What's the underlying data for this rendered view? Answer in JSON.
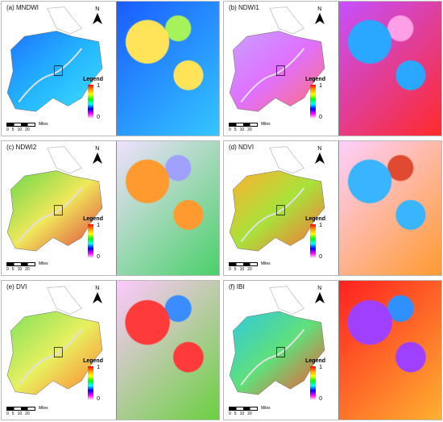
{
  "panels": [
    {
      "id": "a",
      "title": "(a) MNDWI",
      "north": "N",
      "legend": "Legend",
      "hi": "1",
      "lo": "0",
      "scale_ticks": [
        "0",
        "5",
        "10",
        "20"
      ],
      "scale_unit": "Miles",
      "map_colors": [
        "#1e73ff",
        "#23b4ff",
        "#3fe0ff"
      ],
      "zoom_colors": [
        "#1a5cff",
        "#34c6ff",
        "#ffe45a",
        "#a6f25a"
      ]
    },
    {
      "id": "b",
      "title": "(b) NDWI1",
      "north": "N",
      "legend": "Legend",
      "hi": "1",
      "lo": "0",
      "scale_ticks": [
        "0",
        "5",
        "10",
        "20"
      ],
      "scale_unit": "Miles",
      "map_colors": [
        "#c8a0ff",
        "#e070ff",
        "#ff7070"
      ],
      "zoom_colors": [
        "#c550ff",
        "#ff2a2a",
        "#2aa8ff",
        "#ff9fe5"
      ]
    },
    {
      "id": "c",
      "title": "(c) NDWI2",
      "north": "N",
      "legend": "Legend",
      "hi": "1",
      "lo": "0",
      "scale_ticks": [
        "0",
        "5",
        "10",
        "20"
      ],
      "scale_unit": "Miles",
      "map_colors": [
        "#69d64a",
        "#f0e85a",
        "#e04040"
      ],
      "zoom_colors": [
        "#f0e0ff",
        "#4ad06a",
        "#ff9a30",
        "#a0a0ff"
      ]
    },
    {
      "id": "d",
      "title": "(d) NDVI",
      "north": "N",
      "legend": "Legend",
      "hi": "1",
      "lo": "0",
      "scale_ticks": [
        "0",
        "5",
        "10",
        "20"
      ],
      "scale_unit": "Miles",
      "map_colors": [
        "#ffb030",
        "#a8e23a",
        "#ff6a3a"
      ],
      "zoom_colors": [
        "#ffd0ff",
        "#ff9a30",
        "#39b4ff",
        "#e04a30"
      ]
    },
    {
      "id": "e",
      "title": "(e) DVI",
      "north": "N",
      "legend": "Legend",
      "hi": "1",
      "lo": "0",
      "scale_ticks": [
        "0",
        "5",
        "10",
        "20"
      ],
      "scale_unit": "Miles",
      "map_colors": [
        "#7fe05a",
        "#e8f060",
        "#ff8030"
      ],
      "zoom_colors": [
        "#ffc8ff",
        "#6ad040",
        "#ff3a3a",
        "#3a8cff"
      ]
    },
    {
      "id": "f",
      "title": "(f) IBI",
      "north": "N",
      "legend": "Legend",
      "hi": "1",
      "lo": "0",
      "scale_ticks": [
        "0",
        "5",
        "10",
        "20"
      ],
      "scale_unit": "Miles",
      "map_colors": [
        "#30c8e0",
        "#60e07a",
        "#ff5030"
      ],
      "zoom_colors": [
        "#ff2020",
        "#ffb030",
        "#a040ff",
        "#3090ff"
      ]
    }
  ]
}
